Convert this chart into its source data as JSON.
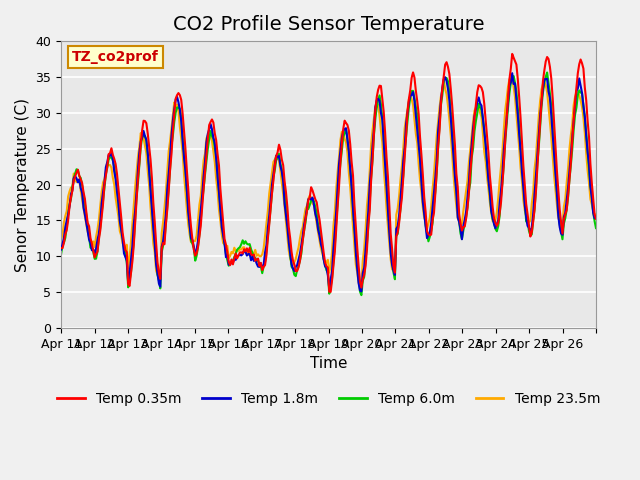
{
  "title": "CO2 Profile Sensor Temperature",
  "xlabel": "Time",
  "ylabel": "Senor Temperature (C)",
  "ylim": [
    0,
    40
  ],
  "xtick_labels": [
    "Apr 11",
    "Apr 12",
    "Apr 13",
    "Apr 14",
    "Apr 15",
    "Apr 16",
    "Apr 17",
    "Apr 18",
    "Apr 19",
    "Apr 20",
    "Apr 21",
    "Apr 22",
    "Apr 23",
    "Apr 24",
    "Apr 25",
    "Apr 26",
    ""
  ],
  "ytick_labels": [
    "0",
    "5",
    "10",
    "15",
    "20",
    "25",
    "30",
    "35",
    "40"
  ],
  "ytick_values": [
    0,
    5,
    10,
    15,
    20,
    25,
    30,
    35,
    40
  ],
  "legend_entries": [
    "Temp 0.35m",
    "Temp 1.8m",
    "Temp 6.0m",
    "Temp 23.5m"
  ],
  "colors": [
    "#ff0000",
    "#0000cc",
    "#00cc00",
    "#ffaa00"
  ],
  "annotation_text": "TZ_co2prof",
  "annotation_bg": "#ffffcc",
  "annotation_border": "#cc8800",
  "background_color": "#e8e8e8",
  "grid_color": "#ffffff",
  "title_fontsize": 14,
  "axis_fontsize": 11,
  "tick_fontsize": 9,
  "legend_fontsize": 10,
  "line_width": 1.5,
  "day_peaks": [
    22,
    25,
    29,
    33,
    29,
    11,
    25,
    19,
    29,
    34,
    35,
    37,
    34,
    38,
    38,
    37
  ],
  "day_troughs": [
    11,
    10,
    6,
    11,
    10,
    9,
    8,
    8,
    5,
    7,
    13,
    13,
    14,
    14,
    13,
    15
  ],
  "offsets_1_8": [
    -1,
    -1,
    -1.5,
    -1,
    -1,
    -0.5,
    -1,
    -1,
    -1,
    -2,
    -2,
    -2,
    -2,
    -3,
    -3,
    -3
  ],
  "offsets_6_0": [
    0,
    -1,
    -2,
    -2,
    -2,
    1,
    -1,
    -1,
    -1.5,
    -2,
    -2,
    -2,
    -3,
    -3,
    -3,
    -4
  ],
  "offsets_23_5": [
    -1,
    -2,
    -2,
    -2,
    -2,
    0,
    -1,
    -1,
    -1.5,
    -3,
    -3,
    -3,
    -3,
    -3,
    -4,
    -4
  ]
}
